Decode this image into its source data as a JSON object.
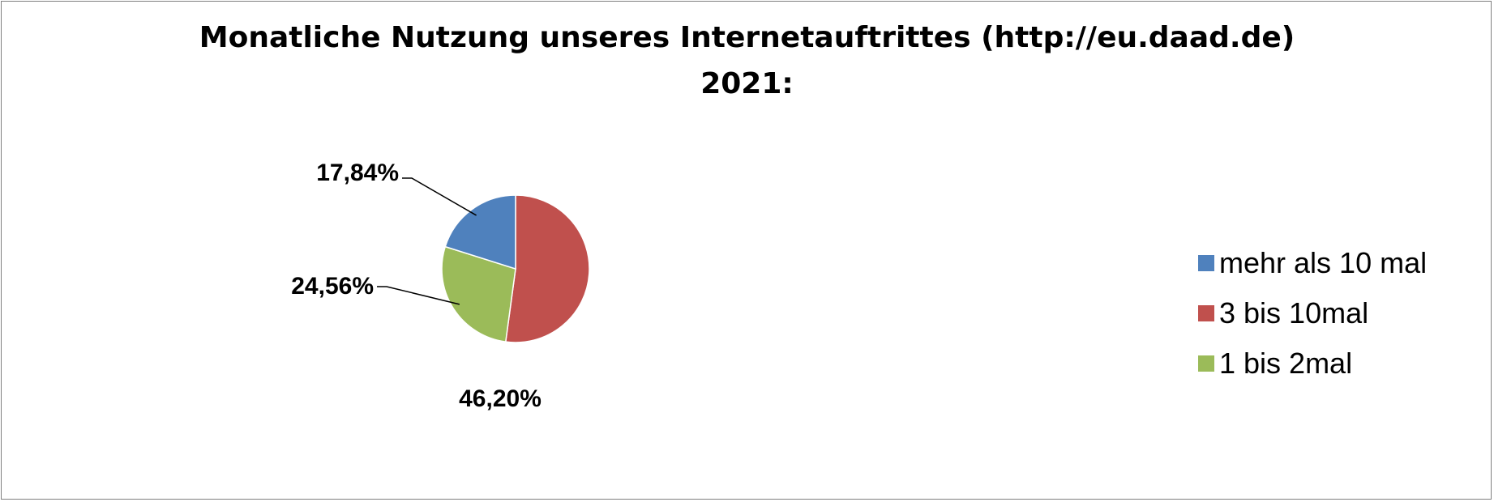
{
  "chart_data": {
    "type": "pie",
    "title": "Monatliche Nutzung unseres Internetauftrittes (http://eu.daad.de)",
    "subtitle": "2021:",
    "categories": [
      "mehr als 10 mal",
      "3 bis 10mal",
      "1 bis 2mal"
    ],
    "values": [
      17.84,
      46.2,
      24.56
    ],
    "labels": [
      "17,84%",
      "46,20%",
      "24,56%"
    ],
    "colors": [
      "#4f81bd",
      "#c0504d",
      "#9bbb59"
    ],
    "legend_position": "right"
  }
}
